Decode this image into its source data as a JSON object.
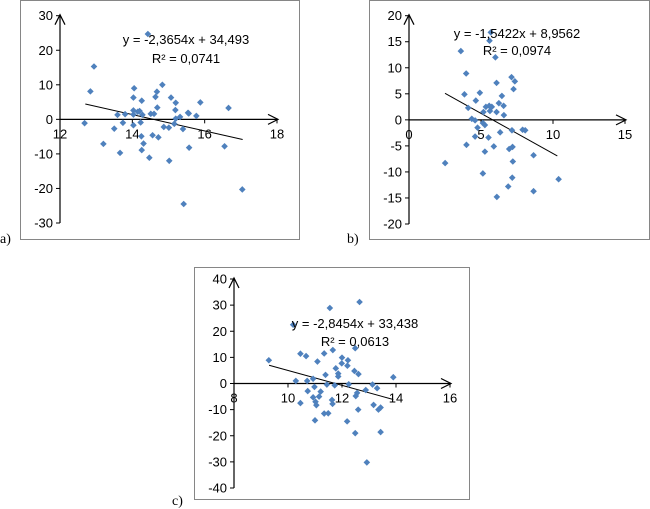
{
  "chart_data": [
    {
      "type": "scatter",
      "panel_label": "a)",
      "equation": "y = -2,3654x + 34,493",
      "r_squared": "R² = 0,0741",
      "trendline": {
        "slope": -2.3654,
        "intercept": 34.493,
        "x_range": [
          12.7,
          17.05
        ]
      },
      "xlim": [
        12,
        18
      ],
      "ylim": [
        -30,
        30
      ],
      "xticks": [
        "12",
        "14",
        "16",
        "18"
      ],
      "xtick_values": [
        12,
        14,
        16,
        18
      ],
      "yticks": [
        "30",
        "20",
        "10",
        "0",
        "-10",
        "-20",
        "-30"
      ],
      "ytick_values": [
        30,
        20,
        10,
        0,
        -10,
        -20,
        -30
      ],
      "grid": false,
      "marker_color": "#4F81BD",
      "points": [
        [
          14.43,
          24.7
        ],
        [
          12.94,
          15.3
        ],
        [
          12.84,
          8.1
        ],
        [
          12.68,
          -1.1
        ],
        [
          13.2,
          -7.1
        ],
        [
          13.5,
          -2.7
        ],
        [
          13.59,
          1.3
        ],
        [
          13.66,
          -9.7
        ],
        [
          13.74,
          -1
        ],
        [
          13.8,
          1.5
        ],
        [
          14.05,
          9
        ],
        [
          14.03,
          6.3
        ],
        [
          14.03,
          2.6
        ],
        [
          14.03,
          1.4
        ],
        [
          14.03,
          -1.7
        ],
        [
          14.15,
          2.2
        ],
        [
          14.2,
          2.4
        ],
        [
          14.23,
          -0.9
        ],
        [
          14.25,
          -4.9
        ],
        [
          14.26,
          5.4
        ],
        [
          14.28,
          1.3
        ],
        [
          14.26,
          -8.9
        ],
        [
          14.31,
          -7
        ],
        [
          14.47,
          -11.1
        ],
        [
          14.51,
          1.6
        ],
        [
          14.56,
          -4.6
        ],
        [
          14.6,
          1.6
        ],
        [
          14.64,
          6.5
        ],
        [
          14.68,
          8
        ],
        [
          14.69,
          3.4
        ],
        [
          14.72,
          -5.2
        ],
        [
          14.83,
          10
        ],
        [
          14.87,
          -2.2
        ],
        [
          15.01,
          -2.4
        ],
        [
          15.02,
          -12
        ],
        [
          15.07,
          6.3
        ],
        [
          15.2,
          4.8
        ],
        [
          15.19,
          2.7
        ],
        [
          15.2,
          0.2
        ],
        [
          15.16,
          -1.3
        ],
        [
          15.32,
          0.7
        ],
        [
          15.4,
          -2.8
        ],
        [
          15.42,
          -24.5
        ],
        [
          15.54,
          1.9
        ],
        [
          15.56,
          1.7
        ],
        [
          15.57,
          -8.2
        ],
        [
          15.77,
          1
        ],
        [
          15.88,
          4.9
        ],
        [
          16.55,
          -7.8
        ],
        [
          16.66,
          3.3
        ],
        [
          17.04,
          -20.3
        ]
      ]
    },
    {
      "type": "scatter",
      "panel_label": "b)",
      "equation": "y = -1,5422x + 8,9562",
      "r_squared": "R² = 0,0974",
      "trendline": {
        "slope": -1.5422,
        "intercept": 8.9562,
        "x_range": [
          2.5,
          10.3
        ]
      },
      "xlim": [
        0,
        15
      ],
      "ylim": [
        -20,
        20
      ],
      "xticks": [
        "0",
        "5",
        "10",
        "15"
      ],
      "xtick_values": [
        0,
        5,
        10,
        15
      ],
      "yticks": [
        "20",
        "15",
        "10",
        "5",
        "0",
        "-5",
        "-10",
        "-15",
        "-20"
      ],
      "ytick_values": [
        20,
        15,
        10,
        5,
        0,
        -5,
        -10,
        -15,
        -20
      ],
      "grid": false,
      "marker_color": "#4F81BD",
      "points": [
        [
          5.68,
          16.8
        ],
        [
          5.59,
          15.2
        ],
        [
          3.6,
          13.2
        ],
        [
          6.0,
          12
        ],
        [
          3.97,
          8.9
        ],
        [
          6.08,
          7.1
        ],
        [
          7.12,
          8.2
        ],
        [
          7.35,
          7.4
        ],
        [
          7.26,
          5.9
        ],
        [
          3.85,
          4.9
        ],
        [
          4.92,
          5.2
        ],
        [
          6.45,
          4.6
        ],
        [
          4.64,
          3.7
        ],
        [
          6.24,
          3.2
        ],
        [
          6.57,
          2.7
        ],
        [
          5.57,
          2.7
        ],
        [
          5.75,
          2.5
        ],
        [
          5.34,
          2.5
        ],
        [
          4.11,
          2.3
        ],
        [
          5.62,
          1.7
        ],
        [
          5.17,
          1.5
        ],
        [
          6.08,
          1.5
        ],
        [
          6.59,
          0.9
        ],
        [
          4.36,
          0.2
        ],
        [
          4.59,
          -0.1
        ],
        [
          5.13,
          -0.6
        ],
        [
          5.27,
          -1
        ],
        [
          4.76,
          -1.5
        ],
        [
          6.33,
          -2.4
        ],
        [
          7.15,
          -2
        ],
        [
          7.89,
          -1.9
        ],
        [
          8.07,
          -2
        ],
        [
          4.59,
          -3.2
        ],
        [
          5.52,
          -3.4
        ],
        [
          3.99,
          -4.8
        ],
        [
          5.89,
          -5.1
        ],
        [
          7.19,
          -5.2
        ],
        [
          6.96,
          -5.6
        ],
        [
          5.27,
          -6.1
        ],
        [
          8.65,
          -6.8
        ],
        [
          7.21,
          -8
        ],
        [
          2.51,
          -8.3
        ],
        [
          5.13,
          -10.3
        ],
        [
          7.17,
          -11.1
        ],
        [
          10.39,
          -11.4
        ],
        [
          6.89,
          -12.8
        ],
        [
          8.65,
          -13.7
        ],
        [
          6.1,
          -14.8
        ]
      ]
    },
    {
      "type": "scatter",
      "panel_label": "c)",
      "equation": "y = -2,8454x + 33,438",
      "r_squared": "R² = 0,0613",
      "trendline": {
        "slope": -2.8454,
        "intercept": 33.438,
        "x_range": [
          9.3,
          13.9
        ]
      },
      "xlim": [
        8,
        16
      ],
      "ylim": [
        -40,
        40
      ],
      "xticks": [
        "8",
        "10",
        "12",
        "14",
        "16"
      ],
      "xtick_values": [
        8,
        10,
        12,
        14,
        16
      ],
      "yticks": [
        "40",
        "30",
        "20",
        "10",
        "0",
        "-10",
        "-20",
        "-30",
        "-40"
      ],
      "ytick_values": [
        40,
        30,
        20,
        10,
        0,
        -10,
        -20,
        -30,
        -40
      ],
      "grid": false,
      "marker_color": "#4F81BD",
      "points": [
        [
          12.65,
          31.2
        ],
        [
          11.55,
          28.9
        ],
        [
          10.19,
          22.5
        ],
        [
          12.49,
          13.5
        ],
        [
          11.66,
          12.8
        ],
        [
          10.46,
          11.4
        ],
        [
          11.34,
          11.5
        ],
        [
          10.67,
          10.5
        ],
        [
          12.0,
          9.9
        ],
        [
          12.22,
          8.9
        ],
        [
          9.29,
          8.9
        ],
        [
          11.09,
          8.4
        ],
        [
          11.99,
          7.7
        ],
        [
          12.2,
          6.8
        ],
        [
          11.77,
          5.8
        ],
        [
          12.46,
          4.8
        ],
        [
          12.61,
          3.6
        ],
        [
          11.86,
          3.8
        ],
        [
          11.86,
          2.7
        ],
        [
          11.39,
          3.3
        ],
        [
          13.9,
          2.4
        ],
        [
          10.93,
          1.8
        ],
        [
          10.29,
          1
        ],
        [
          10.71,
          1
        ],
        [
          12.25,
          -0.3
        ],
        [
          11.44,
          -0.4
        ],
        [
          11.73,
          -0.7
        ],
        [
          13.13,
          -0.4
        ],
        [
          10.98,
          -1.3
        ],
        [
          13.3,
          -1.8
        ],
        [
          12.88,
          -2.5
        ],
        [
          10.73,
          -2.9
        ],
        [
          11.21,
          -3.1
        ],
        [
          12.56,
          -3.6
        ],
        [
          12.51,
          -4.8
        ],
        [
          11.15,
          -5
        ],
        [
          10.93,
          -5.3
        ],
        [
          11.63,
          -6.3
        ],
        [
          11.02,
          -7
        ],
        [
          10.46,
          -7.5
        ],
        [
          11.65,
          -7.8
        ],
        [
          11.05,
          -8.3
        ],
        [
          13.17,
          -8.2
        ],
        [
          13.43,
          -9.2
        ],
        [
          13.35,
          -10
        ],
        [
          12.6,
          -10
        ],
        [
          11.49,
          -11.4
        ],
        [
          11.34,
          -11.5
        ],
        [
          11.0,
          -14.1
        ],
        [
          12.19,
          -14.5
        ],
        [
          13.43,
          -18.6
        ],
        [
          12.49,
          -19
        ],
        [
          12.92,
          -30.2
        ]
      ]
    }
  ]
}
